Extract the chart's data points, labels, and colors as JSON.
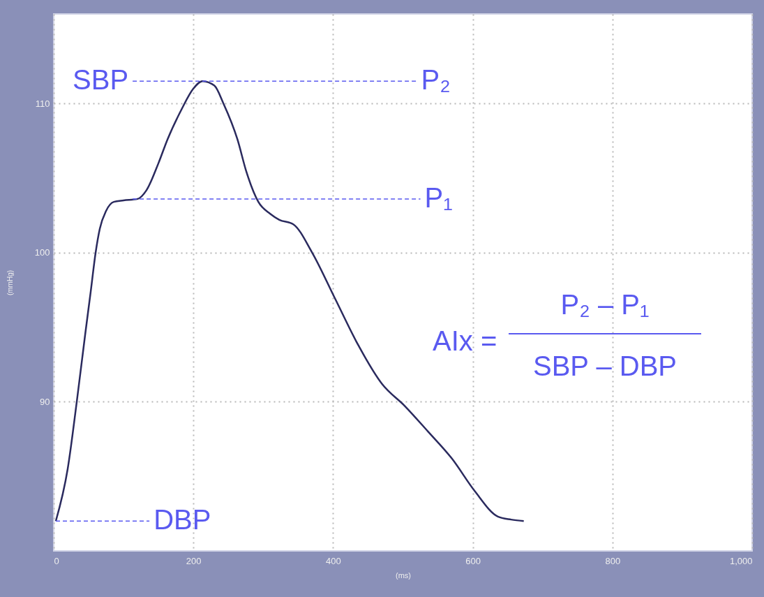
{
  "chart_data": {
    "type": "line",
    "xlabel": "(ms)",
    "ylabel": "(mmHg)",
    "xlim": [
      0,
      1000
    ],
    "ylim": [
      80,
      116
    ],
    "xticks": [
      0,
      200,
      400,
      600,
      800,
      {
        "value": 1000,
        "label": "1,000"
      }
    ],
    "yticks": [
      90,
      100,
      110
    ],
    "grid": true,
    "line_style": "solid",
    "marker": "none",
    "series": [
      {
        "color": "#2a2a5e",
        "x": [
          3,
          20,
          33,
          45,
          53,
          60,
          66,
          75,
          86,
          100,
          120,
          133,
          150,
          163,
          183,
          200,
          213,
          230,
          243,
          263,
          276,
          293,
          310,
          323,
          343,
          370,
          403,
          436,
          470,
          503,
          536,
          570,
          603,
          636,
          655,
          673
        ],
        "values": [
          82.0,
          85.5,
          90.0,
          94.5,
          97.4,
          100.0,
          101.6,
          102.8,
          103.4,
          103.5,
          103.6,
          104.2,
          106.0,
          107.6,
          109.6,
          111.0,
          111.5,
          111.2,
          110.0,
          107.6,
          105.4,
          103.4,
          102.6,
          102.2,
          101.9,
          100.0,
          96.9,
          93.8,
          91.2,
          89.7,
          88.0,
          86.2,
          84.0,
          82.3,
          82.1,
          82.0
        ]
      },
      {
        "type": "line",
        "line_style": "dashed",
        "color": "#5a5af0",
        "x": [
          113,
          520
        ],
        "values": [
          111.5,
          111.5
        ]
      },
      {
        "type": "line",
        "line_style": "dashed",
        "color": "#5a5af0",
        "x": [
          113,
          525
        ],
        "values": [
          103.6,
          103.6
        ]
      },
      {
        "type": "line",
        "line_style": "dashed",
        "color": "#5a5af0",
        "x": [
          3,
          137
        ],
        "values": [
          82.0,
          82.0
        ]
      }
    ],
    "annotations": [
      "SBP",
      "P₂",
      "P₁",
      "DBP",
      "AIx =",
      "P₂ – P₁",
      "SBP – DBP"
    ]
  }
}
